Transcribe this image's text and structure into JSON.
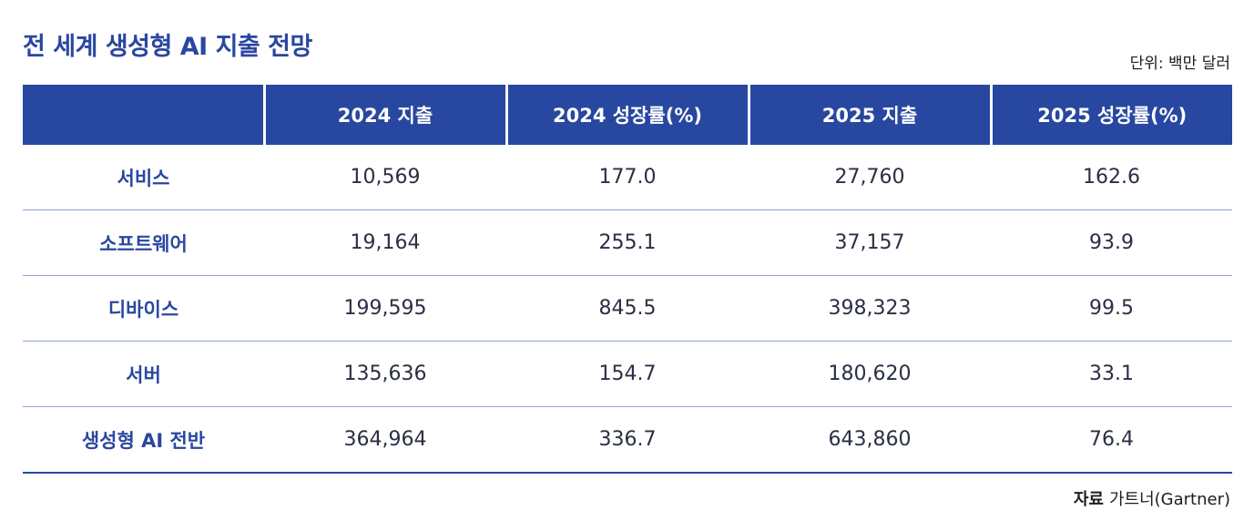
{
  "title": "전 세계 생성형 AI 지출 전망",
  "unit": "단위: 백만 달러",
  "table": {
    "headers": [
      "",
      "2024 지출",
      "2024 성장률(%)",
      "2025 지출",
      "2025 성장률(%)"
    ],
    "rows": [
      {
        "label": "서비스",
        "values": [
          "10,569",
          "177.0",
          "27,760",
          "162.6"
        ]
      },
      {
        "label": "소프트웨어",
        "values": [
          "19,164",
          "255.1",
          "37,157",
          "93.9"
        ]
      },
      {
        "label": "디바이스",
        "values": [
          "199,595",
          "845.5",
          "398,323",
          "99.5"
        ]
      },
      {
        "label": "서버",
        "values": [
          "135,636",
          "154.7",
          "180,620",
          "33.1"
        ]
      },
      {
        "label": "생성형 AI 전반",
        "values": [
          "364,964",
          "336.7",
          "643,860",
          "76.4"
        ]
      }
    ]
  },
  "source": {
    "label": "자료",
    "value": "가트너(Gartner)"
  },
  "colors": {
    "accent": "#2747a0",
    "divider": "#8ea4d6"
  }
}
